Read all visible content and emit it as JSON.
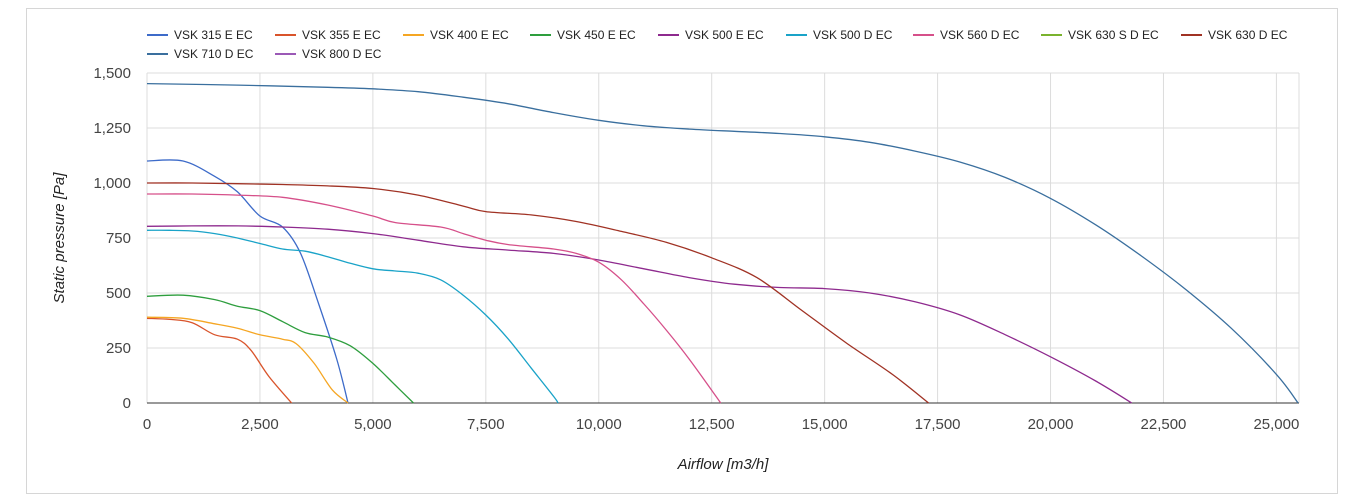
{
  "chart_data": {
    "type": "line",
    "title": "",
    "xlabel": "Airflow [m3/h]",
    "ylabel": "Static pressure [Pa]",
    "xlim": [
      0,
      25500
    ],
    "ylim": [
      0,
      1500
    ],
    "x_ticks": [
      "0",
      "2,500",
      "5,000",
      "7,500",
      "10,000",
      "12,500",
      "15,000",
      "17,500",
      "20,000",
      "22,500",
      "25,000"
    ],
    "x_tick_values": [
      0,
      2500,
      5000,
      7500,
      10000,
      12500,
      15000,
      17500,
      20000,
      22500,
      25000
    ],
    "y_ticks": [
      "0",
      "250",
      "500",
      "750",
      "1,000",
      "1,250",
      "1,500"
    ],
    "y_tick_values": [
      0,
      250,
      500,
      750,
      1000,
      1250,
      1500
    ],
    "grid": true,
    "legend_position": "top",
    "series": [
      {
        "name": "VSK 315 E EC",
        "color": "#3d6bc9",
        "points": [
          [
            0,
            1100
          ],
          [
            800,
            1100
          ],
          [
            1500,
            1030
          ],
          [
            2000,
            960
          ],
          [
            2500,
            850
          ],
          [
            3000,
            800
          ],
          [
            3400,
            680
          ],
          [
            3800,
            450
          ],
          [
            4200,
            200
          ],
          [
            4450,
            0
          ]
        ]
      },
      {
        "name": "VSK 355 E EC",
        "color": "#d9542b",
        "points": [
          [
            0,
            385
          ],
          [
            500,
            380
          ],
          [
            1000,
            365
          ],
          [
            1500,
            310
          ],
          [
            2000,
            290
          ],
          [
            2300,
            240
          ],
          [
            2700,
            120
          ],
          [
            3200,
            0
          ]
        ]
      },
      {
        "name": "VSK 400 E EC",
        "color": "#f5a623",
        "points": [
          [
            0,
            390
          ],
          [
            800,
            385
          ],
          [
            1500,
            360
          ],
          [
            2000,
            340
          ],
          [
            2500,
            310
          ],
          [
            3000,
            290
          ],
          [
            3300,
            270
          ],
          [
            3700,
            180
          ],
          [
            4100,
            60
          ],
          [
            4450,
            0
          ]
        ]
      },
      {
        "name": "VSK 450 E EC",
        "color": "#2e9e3e",
        "points": [
          [
            0,
            485
          ],
          [
            800,
            490
          ],
          [
            1500,
            470
          ],
          [
            2000,
            440
          ],
          [
            2500,
            420
          ],
          [
            3000,
            370
          ],
          [
            3500,
            320
          ],
          [
            4000,
            300
          ],
          [
            4500,
            260
          ],
          [
            5000,
            180
          ],
          [
            5500,
            80
          ],
          [
            5900,
            0
          ]
        ]
      },
      {
        "name": "VSK 500 E EC",
        "color": "#8e2a8e",
        "points": [
          [
            0,
            803
          ],
          [
            1000,
            805
          ],
          [
            2000,
            805
          ],
          [
            3000,
            800
          ],
          [
            4000,
            790
          ],
          [
            5000,
            770
          ],
          [
            6000,
            740
          ],
          [
            7000,
            710
          ],
          [
            8000,
            695
          ],
          [
            9000,
            680
          ],
          [
            10000,
            650
          ],
          [
            11000,
            610
          ],
          [
            12000,
            570
          ],
          [
            13000,
            540
          ],
          [
            14000,
            525
          ],
          [
            15000,
            520
          ],
          [
            16000,
            500
          ],
          [
            17000,
            460
          ],
          [
            18000,
            400
          ],
          [
            19000,
            310
          ],
          [
            20000,
            210
          ],
          [
            21000,
            100
          ],
          [
            21800,
            0
          ]
        ]
      },
      {
        "name": "VSK 500 D EC",
        "color": "#1aa3c8",
        "points": [
          [
            0,
            785
          ],
          [
            500,
            785
          ],
          [
            1000,
            782
          ],
          [
            1500,
            770
          ],
          [
            2000,
            750
          ],
          [
            2500,
            725
          ],
          [
            3000,
            700
          ],
          [
            3500,
            690
          ],
          [
            4000,
            665
          ],
          [
            4500,
            635
          ],
          [
            5000,
            610
          ],
          [
            5500,
            600
          ],
          [
            6000,
            590
          ],
          [
            6500,
            560
          ],
          [
            7000,
            490
          ],
          [
            7500,
            400
          ],
          [
            8000,
            290
          ],
          [
            8500,
            160
          ],
          [
            9000,
            30
          ],
          [
            9100,
            0
          ]
        ]
      },
      {
        "name": "VSK 560 D EC",
        "color": "#d6508a",
        "points": [
          [
            0,
            950
          ],
          [
            1000,
            950
          ],
          [
            2000,
            945
          ],
          [
            3000,
            935
          ],
          [
            4000,
            900
          ],
          [
            5000,
            850
          ],
          [
            5500,
            820
          ],
          [
            6500,
            800
          ],
          [
            7000,
            770
          ],
          [
            7500,
            740
          ],
          [
            8000,
            720
          ],
          [
            9000,
            700
          ],
          [
            9500,
            680
          ],
          [
            10000,
            640
          ],
          [
            10500,
            560
          ],
          [
            11000,
            450
          ],
          [
            11500,
            330
          ],
          [
            12000,
            200
          ],
          [
            12700,
            0
          ]
        ]
      },
      {
        "name": "VSK 630 S D EC",
        "color": "#7ab32e",
        "points": []
      },
      {
        "name": "VSK 630 D EC",
        "color": "#a03224",
        "points": [
          [
            0,
            1000
          ],
          [
            1000,
            1000
          ],
          [
            2000,
            997
          ],
          [
            3000,
            993
          ],
          [
            4000,
            987
          ],
          [
            5000,
            975
          ],
          [
            6000,
            945
          ],
          [
            7000,
            895
          ],
          [
            7500,
            870
          ],
          [
            8500,
            855
          ],
          [
            9500,
            825
          ],
          [
            10500,
            780
          ],
          [
            11500,
            730
          ],
          [
            12500,
            660
          ],
          [
            13500,
            570
          ],
          [
            14500,
            420
          ],
          [
            15500,
            270
          ],
          [
            16500,
            130
          ],
          [
            17300,
            0
          ]
        ]
      },
      {
        "name": "VSK 710 D EC",
        "color": "#3a6f9e",
        "points": [
          [
            0,
            1452
          ],
          [
            2000,
            1445
          ],
          [
            4000,
            1435
          ],
          [
            5000,
            1428
          ],
          [
            6000,
            1415
          ],
          [
            7000,
            1390
          ],
          [
            8000,
            1360
          ],
          [
            9000,
            1320
          ],
          [
            10000,
            1285
          ],
          [
            11000,
            1260
          ],
          [
            12000,
            1245
          ],
          [
            13000,
            1235
          ],
          [
            14000,
            1225
          ],
          [
            15000,
            1210
          ],
          [
            16000,
            1185
          ],
          [
            17000,
            1145
          ],
          [
            18000,
            1095
          ],
          [
            19000,
            1025
          ],
          [
            20000,
            930
          ],
          [
            21000,
            810
          ],
          [
            22000,
            670
          ],
          [
            23000,
            515
          ],
          [
            24000,
            340
          ],
          [
            25000,
            130
          ],
          [
            25480,
            0
          ]
        ]
      },
      {
        "name": "VSK 800 D EC",
        "color": "#9b59b6",
        "points": []
      }
    ]
  }
}
